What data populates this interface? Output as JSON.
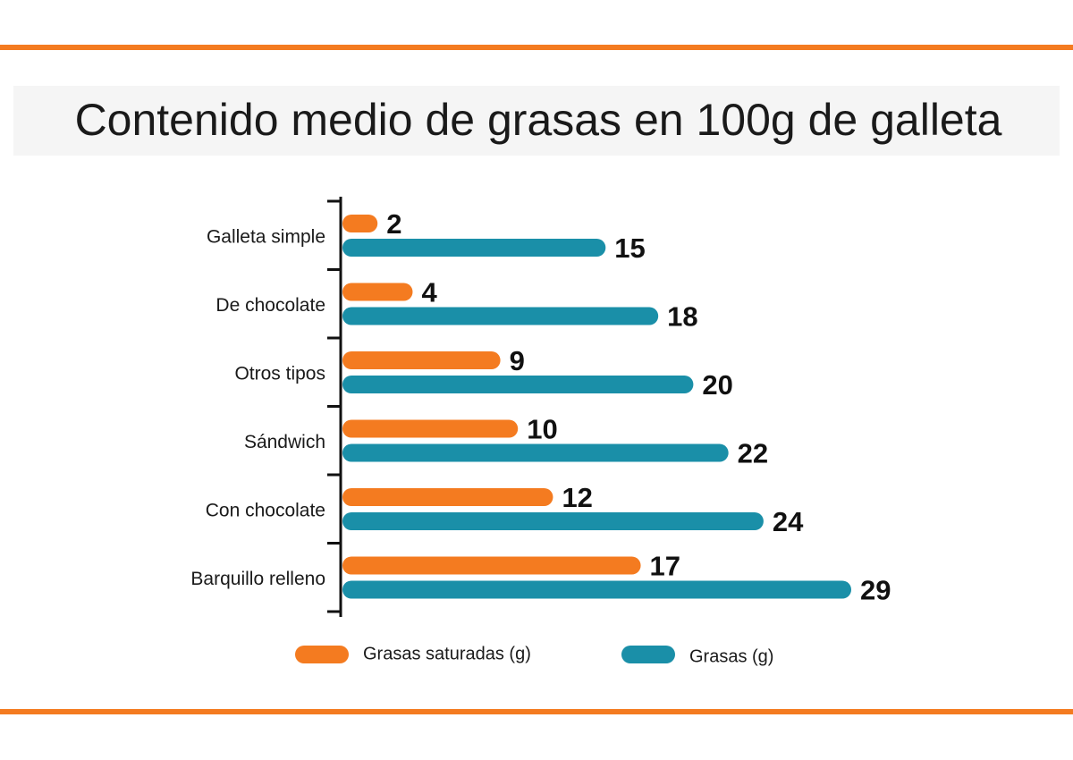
{
  "chart_data": {
    "type": "bar",
    "orientation": "horizontal",
    "title": "Contenido medio de grasas en 100g de galleta",
    "categories": [
      "Galleta simple",
      "De chocolate",
      "Otros tipos",
      "Sándwich",
      "Con chocolate",
      "Barquillo relleno"
    ],
    "series": [
      {
        "name": "Grasas saturadas (g)",
        "color": "#f47b20",
        "values": [
          2,
          4,
          9,
          10,
          12,
          17
        ]
      },
      {
        "name": "Grasas (g)",
        "color": "#1a8fa8",
        "values": [
          15,
          18,
          20,
          22,
          24,
          29
        ]
      }
    ]
  }
}
